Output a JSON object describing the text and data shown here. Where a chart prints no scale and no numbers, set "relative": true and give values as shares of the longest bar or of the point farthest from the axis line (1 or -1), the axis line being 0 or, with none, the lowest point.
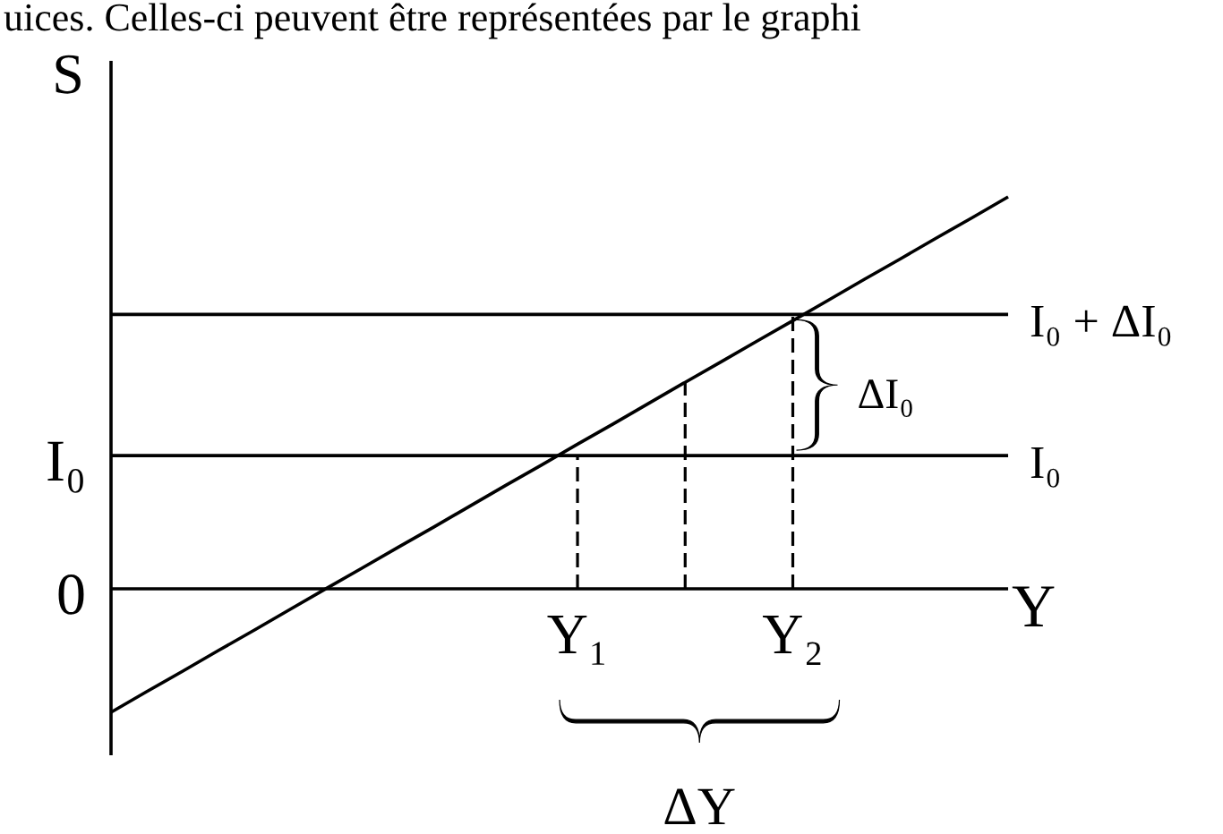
{
  "chart_data": {
    "type": "line",
    "relative": true,
    "marker": "none",
    "annotations": [
      "uices. Celles-ci peuvent être représentées par le graphi",
      "I₀",
      "0",
      "ΔI₀",
      "ΔY"
    ],
    "xlabel": "Y",
    "ylabel": "S",
    "categories": [
      null,
      null,
      null,
      null,
      null,
      null,
      null,
      null,
      null,
      null,
      null,
      null,
      null,
      "Y₁",
      null,
      null,
      null,
      null,
      null,
      "Y₂",
      null,
      null,
      null,
      null,
      null,
      null
    ],
    "series": [
      {
        "color": "#000000",
        "values": [
          -0.315,
          -0.262,
          -0.21,
          -0.157,
          -0.105,
          -0.052,
          0.001,
          0.053,
          0.106,
          0.158,
          0.211,
          0.264,
          0.316,
          0.369,
          0.421,
          0.474,
          0.527,
          0.579,
          0.632,
          0.684,
          0.737,
          0.79,
          0.842,
          0.895,
          0.947,
          1
        ]
      },
      {
        "name": "I₀ + ΔI₀",
        "color": "#000000",
        "values": [
          0.7,
          0.7,
          0.7,
          0.7,
          0.7,
          0.7,
          0.7,
          0.7,
          0.7,
          0.7,
          0.7,
          0.7,
          0.7,
          0.7,
          0.7,
          0.7,
          0.7,
          0.7,
          0.7,
          0.7,
          0.7,
          0.7,
          0.7,
          0.7,
          0.7,
          0.7
        ]
      },
      {
        "name": "I₀",
        "color": "#000000",
        "values": [
          0.34,
          0.34,
          0.34,
          0.34,
          0.34,
          0.34,
          0.34,
          0.34,
          0.34,
          0.34,
          0.34,
          0.34,
          0.34,
          0.34,
          0.34,
          0.34,
          0.34,
          0.34,
          0.34,
          0.34,
          0.34,
          0.34,
          0.34,
          0.34,
          0.34,
          0.34
        ]
      },
      {
        "type": "bar",
        "color": "#000000",
        "line_style": "dashed",
        "values": [
          null,
          null,
          null,
          null,
          null,
          null,
          null,
          null,
          null,
          null,
          null,
          null,
          null,
          0.34,
          null,
          null,
          0.527,
          null,
          null,
          0.7,
          null,
          null,
          null,
          null,
          null,
          null
        ]
      }
    ]
  }
}
